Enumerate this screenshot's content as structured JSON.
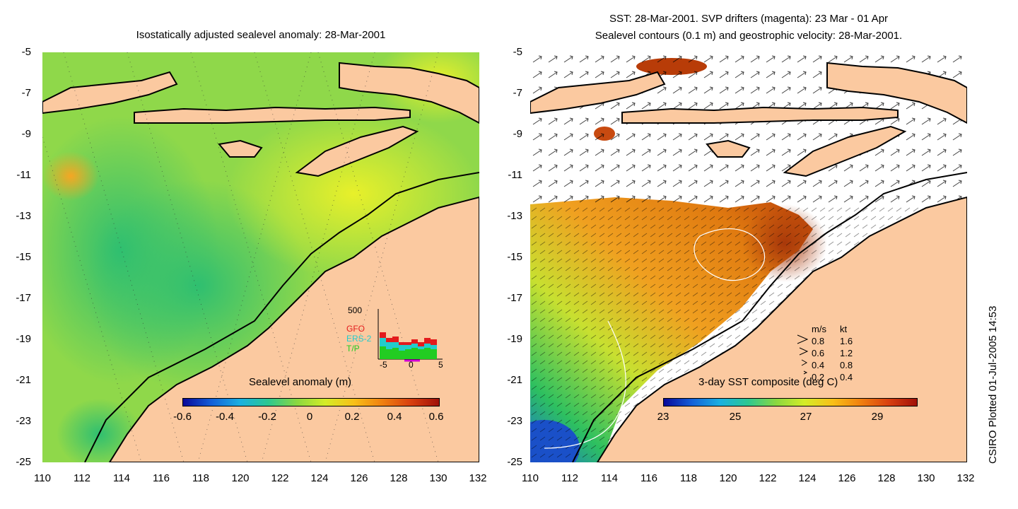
{
  "left_panel": {
    "title": "Isostatically adjusted sealevel anomaly: 28-Mar-2001",
    "colorbar": {
      "title": "Sealevel anomaly (m)",
      "ticks": [
        "-0.6",
        "-0.4",
        "-0.2",
        "0",
        "0.2",
        "0.4",
        "0.6"
      ]
    },
    "histogram": {
      "y_max_label": "500",
      "series": [
        "GFO",
        "ERS-2",
        "T/P"
      ],
      "series_colors": [
        "#e31a1c",
        "#22cccc",
        "#22cc22"
      ],
      "x_ticks": [
        "-5",
        "0",
        "5"
      ]
    }
  },
  "right_panel": {
    "title_line1": "SST: 28-Mar-2001. SVP drifters (magenta): 23 Mar - 01 Apr",
    "title_line2": "Sealevel contours (0.1 m) and geostrophic velocity: 28-Mar-2001.",
    "colorbar": {
      "title": "3-day SST composite (deg C)",
      "ticks": [
        "23",
        "25",
        "27",
        "29"
      ]
    },
    "velocity_legend": {
      "header_ms": "m/s",
      "header_kt": "kt",
      "rows": [
        {
          "ms": "0.8",
          "kt": "1.6"
        },
        {
          "ms": "0.6",
          "kt": "1.2"
        },
        {
          "ms": "0.4",
          "kt": "0.8"
        },
        {
          "ms": "0.2",
          "kt": "0.4"
        }
      ]
    }
  },
  "axes": {
    "y_ticks": [
      "-5",
      "-7",
      "-9",
      "-11",
      "-13",
      "-15",
      "-17",
      "-19",
      "-21",
      "-23",
      "-25"
    ],
    "x_ticks": [
      "110",
      "112",
      "114",
      "116",
      "118",
      "120",
      "122",
      "124",
      "126",
      "128",
      "130",
      "132"
    ]
  },
  "credit": "CSIRO Plotted 01-Jul-2005 14:53",
  "colors": {
    "land": "#fbc9a0",
    "coast": "#000000",
    "sla_base": "#b9e63a",
    "sst_warm": "#e07a10"
  }
}
